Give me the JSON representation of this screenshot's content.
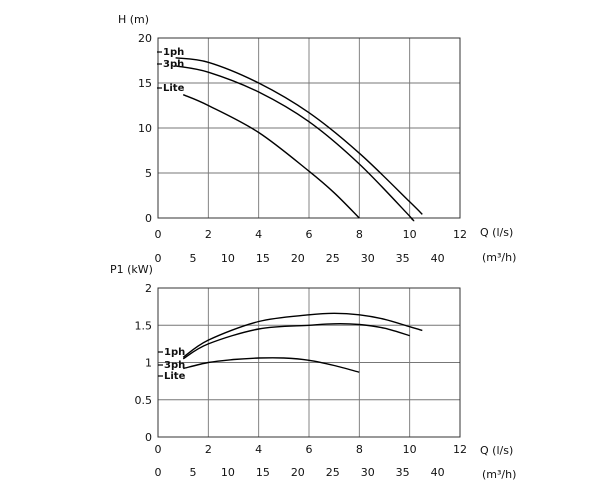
{
  "chart_data": [
    {
      "type": "line",
      "ylabel": "H (m)",
      "xlabel": "Q (l/s)",
      "x2label": "(m³/h)",
      "xlim": [
        0,
        12
      ],
      "ylim": [
        0,
        20
      ],
      "xticks": [
        0,
        2,
        4,
        6,
        8,
        10,
        12
      ],
      "yticks": [
        0,
        5,
        10,
        15,
        20
      ],
      "x2ticks": [
        0,
        5,
        10,
        15,
        20,
        25,
        30,
        35,
        40
      ],
      "grid": true,
      "series": [
        {
          "name": "1ph",
          "x": [
            0.7,
            2,
            4,
            6,
            8,
            10,
            10.5
          ],
          "y": [
            17.8,
            17.3,
            15.0,
            11.7,
            7.2,
            1.8,
            0.4
          ]
        },
        {
          "name": "3ph",
          "x": [
            0.7,
            2,
            4,
            6,
            8,
            10,
            10.05
          ],
          "y": [
            16.9,
            16.2,
            14.0,
            10.7,
            6.0,
            0.2,
            0.0
          ]
        },
        {
          "name": "Lite",
          "x": [
            1,
            2,
            4,
            6,
            7,
            8
          ],
          "y": [
            13.7,
            12.5,
            9.5,
            5.2,
            2.8,
            0.0
          ]
        }
      ]
    },
    {
      "type": "line",
      "ylabel": "P1 (kW)",
      "xlabel": "Q (l/s)",
      "x2label": "(m³/h)",
      "xlim": [
        0,
        12
      ],
      "ylim": [
        0,
        2
      ],
      "xticks": [
        0,
        2,
        4,
        6,
        8,
        10,
        12
      ],
      "yticks": [
        0,
        0.5,
        1,
        1.5,
        2
      ],
      "yticklabels": [
        "0",
        "0.5",
        "1",
        "1.5",
        "2"
      ],
      "x2ticks": [
        0,
        5,
        10,
        15,
        20,
        25,
        30,
        35,
        40
      ],
      "grid": true,
      "series": [
        {
          "name": "1ph",
          "x": [
            1,
            2,
            4,
            6,
            7,
            8,
            9,
            10,
            10.5
          ],
          "y": [
            1.07,
            1.3,
            1.55,
            1.64,
            1.66,
            1.64,
            1.58,
            1.48,
            1.43
          ]
        },
        {
          "name": "3ph",
          "x": [
            1,
            2,
            4,
            6,
            7,
            8,
            9,
            10
          ],
          "y": [
            1.05,
            1.25,
            1.45,
            1.5,
            1.52,
            1.51,
            1.46,
            1.36
          ]
        },
        {
          "name": "Lite",
          "x": [
            1,
            2,
            3,
            4,
            5,
            6,
            7,
            8
          ],
          "y": [
            0.92,
            1.0,
            1.04,
            1.06,
            1.06,
            1.03,
            0.96,
            0.87
          ]
        }
      ]
    }
  ]
}
